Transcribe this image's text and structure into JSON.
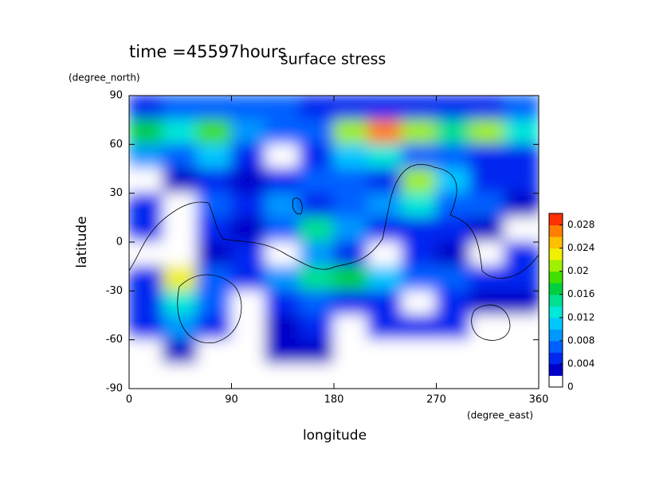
{
  "chart_data": {
    "type": "contour",
    "title": "surface stress",
    "subtitle": "time =45597hours",
    "x_label": "longitude",
    "x_units": "(degree_east)",
    "y_label": "latitude",
    "y_units": "(degree_north)",
    "xlim": [
      0,
      360
    ],
    "xticks": [
      0,
      90,
      180,
      270,
      360
    ],
    "ylim": [
      -90,
      90
    ],
    "yticks": [
      -90,
      -60,
      -30,
      0,
      30,
      60,
      90
    ],
    "x": [
      15,
      45,
      75,
      105,
      135,
      165,
      195,
      225,
      255,
      285,
      315,
      345
    ],
    "y": [
      82.5,
      67.5,
      52.5,
      37.5,
      22.5,
      7.5,
      -7.5,
      -22.5,
      -37.5,
      -52.5,
      -67.5,
      -82.5
    ],
    "z": [
      [
        0.005,
        0.006,
        0.006,
        0.006,
        0.006,
        0.005,
        0.005,
        0.005,
        0.004,
        0.005,
        0.005,
        0.006
      ],
      [
        0.016,
        0.012,
        0.018,
        0.008,
        0.006,
        0.006,
        0.02,
        0.026,
        0.02,
        0.014,
        0.02,
        0.012
      ],
      [
        0.008,
        0.006,
        0.01,
        0.004,
        0,
        0.004,
        0.01,
        0.012,
        0.006,
        0.006,
        0.004,
        0.004
      ],
      [
        0,
        0.002,
        0.004,
        0.002,
        0.004,
        0.006,
        0.006,
        0.004,
        0.02,
        0.01,
        0.004,
        0.004
      ],
      [
        0.004,
        0,
        0.006,
        0.004,
        0.008,
        0.004,
        0.006,
        0.008,
        0.012,
        0.006,
        0.006,
        0.002
      ],
      [
        0.004,
        0,
        0.004,
        0.002,
        0.006,
        0.014,
        0.008,
        0.004,
        0.004,
        0.004,
        0.002,
        0
      ],
      [
        0,
        0,
        0.002,
        0.004,
        0,
        0.008,
        0.004,
        0,
        0.004,
        0.002,
        0,
        0.004
      ],
      [
        0.004,
        0.022,
        0.006,
        0.004,
        0.008,
        0.014,
        0.016,
        0.01,
        0.006,
        0.006,
        0.004,
        0.004
      ],
      [
        0.004,
        0.012,
        0.006,
        0,
        0.004,
        0.006,
        0.004,
        0.004,
        0,
        0.004,
        0.002,
        0.002
      ],
      [
        0.004,
        0.008,
        0.004,
        0,
        0.002,
        0.004,
        0,
        0.004,
        0.004,
        0.004,
        0,
        0
      ],
      [
        0,
        0.002,
        0,
        0,
        0.002,
        0.002,
        0,
        0,
        0,
        0,
        0,
        0
      ],
      [
        0,
        0,
        0,
        0,
        0,
        0,
        0,
        0,
        0,
        0,
        0,
        0
      ]
    ],
    "clim": [
      0,
      0.03
    ],
    "cticks": [
      0,
      0.004,
      0.008,
      0.012,
      0.016,
      0.02,
      0.024,
      0.028
    ],
    "colors": [
      "#ffffff",
      "#0000c8",
      "#0028f0",
      "#0060ff",
      "#0098ff",
      "#00c8ff",
      "#00e8d8",
      "#00e090",
      "#00d040",
      "#40e000",
      "#a0f000",
      "#f0f000",
      "#ffc000",
      "#ff8000",
      "#ff3000"
    ]
  }
}
